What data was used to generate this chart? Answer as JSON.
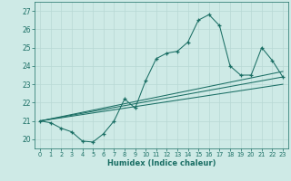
{
  "title": "",
  "xlabel": "Humidex (Indice chaleur)",
  "background_color": "#ceeae6",
  "grid_color": "#b8d8d4",
  "line_color": "#1a6e64",
  "x_ticks": [
    0,
    1,
    2,
    3,
    4,
    5,
    6,
    7,
    8,
    9,
    10,
    11,
    12,
    13,
    14,
    15,
    16,
    17,
    18,
    19,
    20,
    21,
    22,
    23
  ],
  "y_ticks": [
    20,
    21,
    22,
    23,
    24,
    25,
    26,
    27
  ],
  "xlim": [
    -0.5,
    23.5
  ],
  "ylim": [
    19.5,
    27.5
  ],
  "main_series_x": [
    0,
    1,
    2,
    3,
    4,
    5,
    6,
    7,
    8,
    9,
    10,
    11,
    12,
    13,
    14,
    15,
    16,
    17,
    18,
    19,
    20,
    21,
    22,
    23
  ],
  "main_series_y": [
    21.0,
    20.9,
    20.6,
    20.4,
    19.9,
    19.85,
    20.3,
    21.0,
    22.2,
    21.7,
    23.2,
    24.4,
    24.7,
    24.8,
    25.3,
    26.5,
    26.8,
    26.2,
    24.0,
    23.5,
    23.5,
    25.0,
    24.3,
    23.4
  ],
  "line1_x": [
    0,
    23
  ],
  "line1_y": [
    21.0,
    23.4
  ],
  "line2_x": [
    0,
    23
  ],
  "line2_y": [
    21.0,
    23.7
  ],
  "line3_x": [
    0,
    23
  ],
  "line3_y": [
    21.0,
    23.0
  ]
}
